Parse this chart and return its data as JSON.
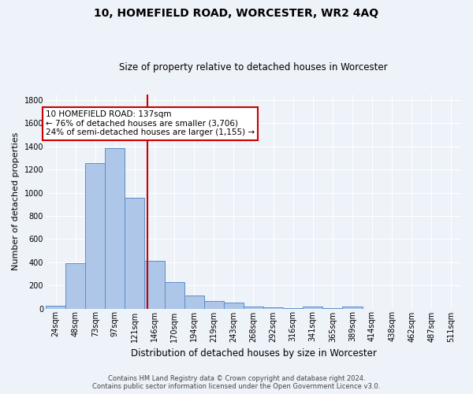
{
  "title": "10, HOMEFIELD ROAD, WORCESTER, WR2 4AQ",
  "subtitle": "Size of property relative to detached houses in Worcester",
  "xlabel": "Distribution of detached houses by size in Worcester",
  "ylabel": "Number of detached properties",
  "footer_line1": "Contains HM Land Registry data © Crown copyright and database right 2024.",
  "footer_line2": "Contains public sector information licensed under the Open Government Licence v3.0.",
  "annotation_line1": "10 HOMEFIELD ROAD: 137sqm",
  "annotation_line2": "← 76% of detached houses are smaller (3,706)",
  "annotation_line3": "24% of semi-detached houses are larger (1,155) →",
  "bar_labels": [
    "24sqm",
    "48sqm",
    "73sqm",
    "97sqm",
    "121sqm",
    "146sqm",
    "170sqm",
    "194sqm",
    "219sqm",
    "243sqm",
    "268sqm",
    "292sqm",
    "316sqm",
    "341sqm",
    "365sqm",
    "389sqm",
    "414sqm",
    "438sqm",
    "462sqm",
    "487sqm",
    "511sqm"
  ],
  "bar_values": [
    25,
    390,
    1255,
    1385,
    955,
    415,
    230,
    115,
    65,
    50,
    20,
    10,
    5,
    15,
    5,
    20,
    0,
    0,
    0,
    0,
    0
  ],
  "bar_color": "#aec6e8",
  "bar_edge_color": "#5b8fc9",
  "background_color": "#eef2f9",
  "grid_color": "#ffffff",
  "vline_x": 4.64,
  "vline_color": "#cc0000",
  "annotation_box_edge": "#cc0000",
  "ylim": [
    0,
    1850
  ],
  "yticks": [
    0,
    200,
    400,
    600,
    800,
    1000,
    1200,
    1400,
    1600,
    1800
  ],
  "title_fontsize": 10,
  "subtitle_fontsize": 8.5,
  "ylabel_fontsize": 8,
  "xlabel_fontsize": 8.5,
  "tick_fontsize": 7,
  "footer_fontsize": 6,
  "annotation_fontsize": 7.5
}
